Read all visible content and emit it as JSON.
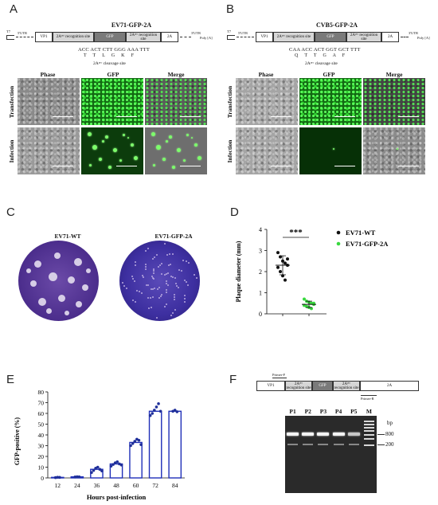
{
  "panels": {
    "A": {
      "label": "A",
      "title": "EV71-GFP-2A",
      "genome": {
        "t7": "T7",
        "utr5": "5'UTR",
        "vp1": "VP1",
        "rec1": "2Aᵖʳᵒ recognition site",
        "gfp": "GFP",
        "rec2": "2Aᵖʳᵒ recognition site",
        "twoA": "2A",
        "utr3": "3'UTR",
        "polya": "Poly [A]"
      },
      "seq": "ACC ACT CTT GGG AAA TTT",
      "aa": "T T L G K F",
      "cleavage": "2Aᵖʳᵒ cleavage site",
      "columns": [
        "Phase",
        "GFP",
        "Merge"
      ],
      "rows": [
        "Transfection",
        "Infection"
      ]
    },
    "B": {
      "label": "B",
      "title": "CVB5-GFP-2A",
      "genome": {
        "t7": "T7",
        "utr5": "5'UTR",
        "vp1": "VP1",
        "rec1": "2Aᵖʳᵒ recognition site",
        "gfp": "GFP",
        "rec2": "2Aᵖʳᵒ recognition site",
        "twoA": "2A",
        "utr3": "3'UTR",
        "polya": "Poly [A]"
      },
      "seq": "CAA ACC ACT GGT GCT TTT",
      "aa": "Q T T G A F",
      "cleavage": "2Aᵖʳᵒ cleavage site",
      "columns": [
        "Phase",
        "GFP",
        "Merge"
      ],
      "rows": [
        "Transfection",
        "Infection"
      ]
    },
    "C": {
      "label": "C",
      "dish1": "EV71-WT",
      "dish2": "EV71-GFP-2A"
    },
    "D": {
      "label": "D",
      "significance": "***"
    },
    "E": {
      "label": "E"
    },
    "F": {
      "label": "F",
      "construct": {
        "vp1": "VP1",
        "rec1": "2Aᵖʳᵒ recognition site",
        "gfp": "GFP",
        "rec2": "2Aᵖʳᵒ recognition site",
        "twoA": "2A",
        "primerF": "Primer-F",
        "primerR": "Primer-R"
      },
      "lanes": [
        "P1",
        "P2",
        "P3",
        "P4",
        "P5",
        "M"
      ],
      "unit": "bp",
      "markers": [
        "800",
        "200"
      ]
    }
  },
  "colors": {
    "ev71_wt": "#111111",
    "ev71_gfp": "#39d83f",
    "bar_edge": "#1f2fb8",
    "dot_fill": "#1f2f9a"
  },
  "chart_data": [
    {
      "type": "scatter",
      "panel": "D",
      "ylabel": "Plaque diameter (mm)",
      "ylim": [
        0,
        4
      ],
      "yticks": [
        "0",
        "1",
        "2",
        "3",
        "4"
      ],
      "series": [
        {
          "name": "EV71-WT",
          "color": "#111111",
          "mean": 2.3,
          "sd": 0.45,
          "values": [
            2.9,
            2.7,
            2.5,
            2.4,
            2.3,
            2.2,
            2.0,
            1.8,
            1.6,
            2.6
          ]
        },
        {
          "name": "EV71-GFP-2A",
          "color": "#39d83f",
          "mean": 0.45,
          "sd": 0.15,
          "values": [
            0.7,
            0.6,
            0.55,
            0.5,
            0.45,
            0.4,
            0.35,
            0.3,
            0.25,
            0.5
          ]
        }
      ]
    },
    {
      "type": "bar",
      "panel": "E",
      "xlabel": "Hours post-infection",
      "ylabel": "GFP-positive (%)",
      "ylim": [
        0,
        80
      ],
      "yticks": [
        "0",
        "10",
        "20",
        "30",
        "40",
        "50",
        "60",
        "70",
        "80"
      ],
      "categories": [
        "12",
        "24",
        "36",
        "48",
        "60",
        "72",
        "84"
      ],
      "values": [
        0.5,
        1.0,
        8.0,
        13.0,
        33.0,
        62.0,
        62.0
      ],
      "points": [
        [
          0.3,
          0.6,
          0.5
        ],
        [
          0.9,
          1.1,
          1.0
        ],
        [
          5.0,
          7.0,
          9.0,
          10.0,
          8.0,
          6.5
        ],
        [
          11.0,
          12.5,
          14.0,
          15.0,
          13.0,
          12.0
        ],
        [
          30.0,
          32.0,
          34.0,
          36.0,
          35.0,
          31.0
        ],
        [
          58.0,
          60.0,
          63.0,
          66.0,
          69.0,
          62.0
        ],
        [
          62.0,
          63.0,
          61.5
        ]
      ]
    }
  ]
}
